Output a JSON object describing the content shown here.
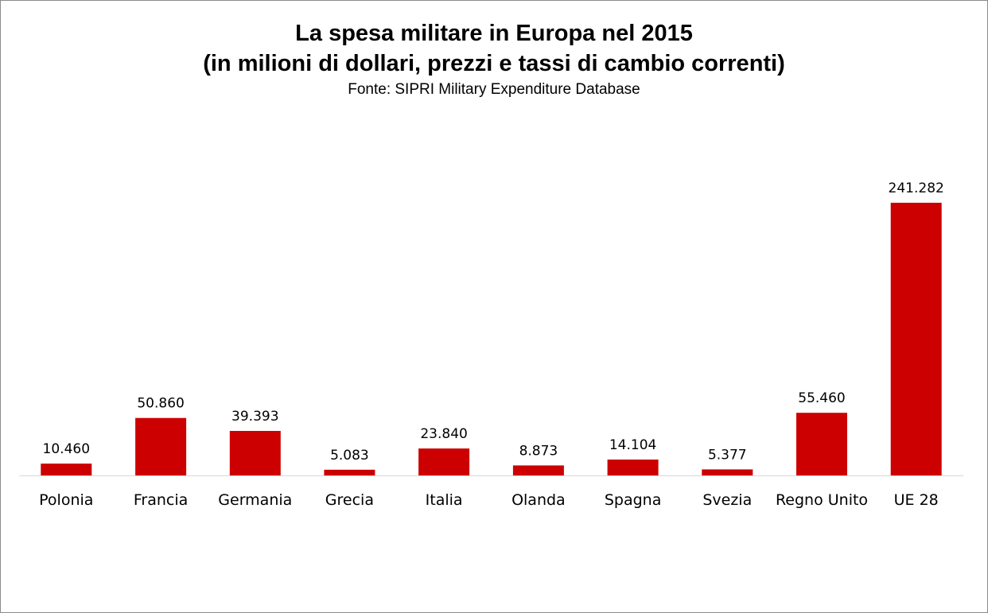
{
  "chart_data": {
    "type": "bar",
    "title": "La spesa militare in Europa nel 2015",
    "subtitle": "(in milioni di dollari, prezzi e tassi di cambio correnti)",
    "source": "Fonte: SIPRI Military Expenditure Database",
    "categories": [
      "Polonia",
      "Francia",
      "Germania",
      "Grecia",
      "Italia",
      "Olanda",
      "Spagna",
      "Svezia",
      "Regno Unito",
      "UE 28"
    ],
    "values": [
      10460,
      50860,
      39393,
      5083,
      23840,
      8873,
      14104,
      5377,
      55460,
      241282
    ],
    "data_labels": [
      "10.460",
      "50.860",
      "39.393",
      "5.083",
      "23.840",
      "8.873",
      "14.104",
      "5.377",
      "55.460",
      "241.282"
    ],
    "bar_color": "#cc0000",
    "ylim": [
      0,
      260000
    ],
    "grid": false,
    "legend": "none",
    "xlabel": "",
    "ylabel": ""
  }
}
